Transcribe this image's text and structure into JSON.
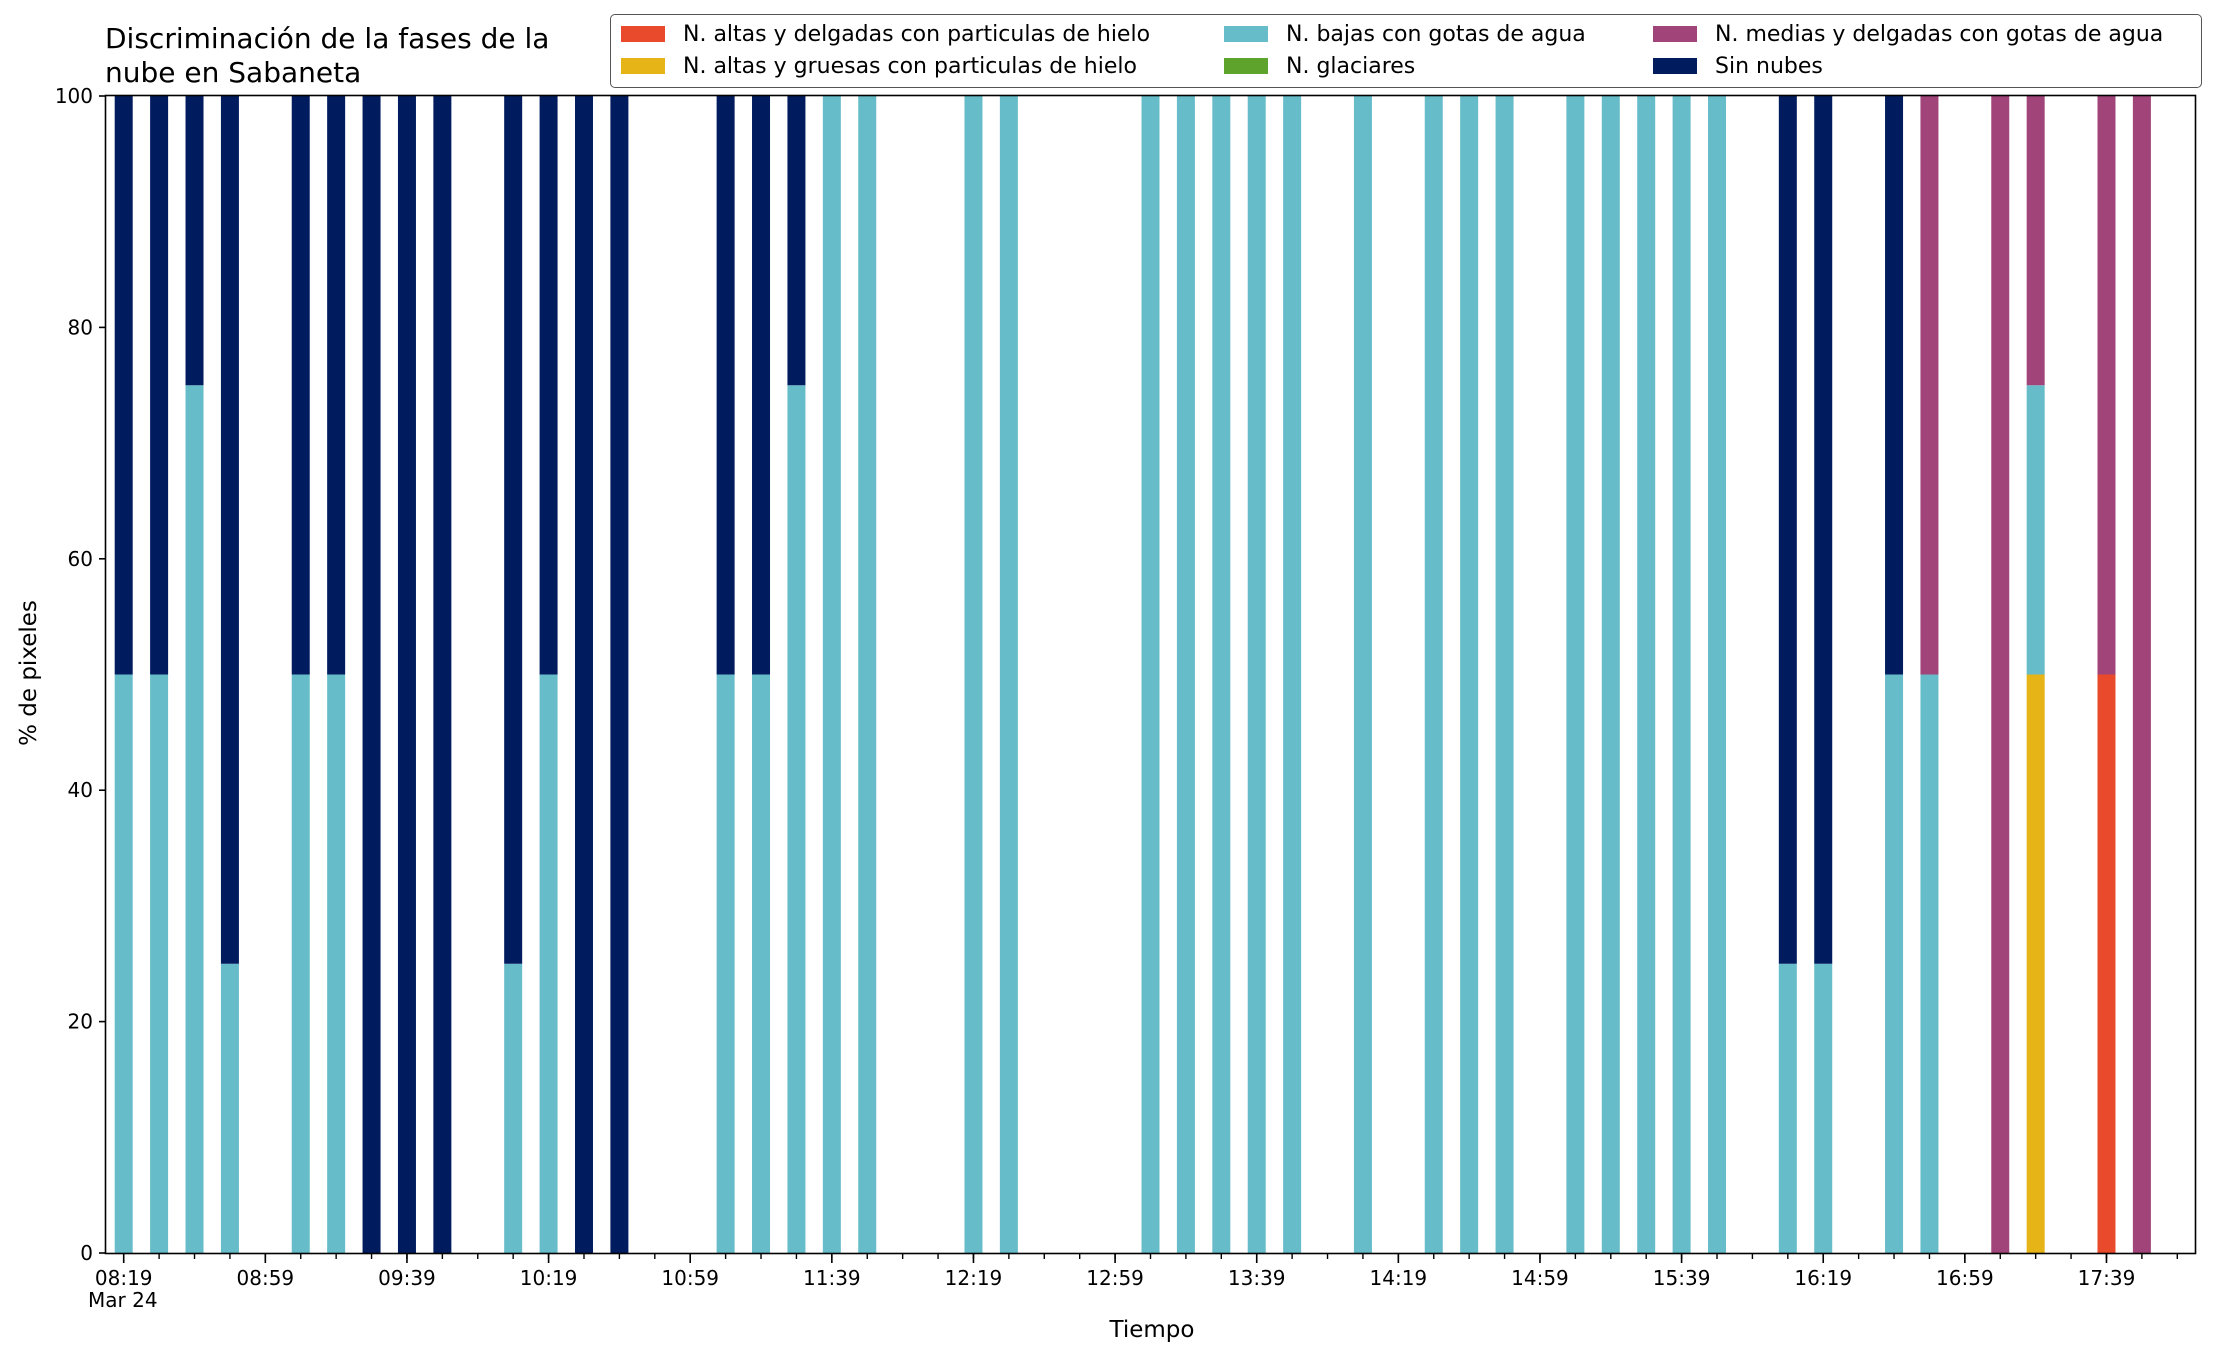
{
  "chart_data": {
    "type": "bar",
    "stacked": true,
    "title": "Discriminación de la fases de la nube en Sabaneta",
    "title_lines": [
      "Discriminación de la fases de la",
      "nube en Sabaneta"
    ],
    "xlabel": "Tiempo",
    "ylabel": "% de pixeles",
    "ylim": [
      0,
      100
    ],
    "yticks": [
      0,
      20,
      40,
      60,
      80,
      100
    ],
    "xlim": [
      "08:14",
      "18:04"
    ],
    "x_tick_labels": [
      "08:19",
      "08:59",
      "09:39",
      "10:19",
      "10:59",
      "11:39",
      "12:19",
      "12:59",
      "13:39",
      "14:19",
      "14:59",
      "15:39",
      "16:19",
      "16:59",
      "17:39"
    ],
    "x_date_label": "Mar 24",
    "legend_position": "top-right",
    "grid": false,
    "series_colors": {
      "altas_delgadas": "#e84a2b",
      "altas_gruesas": "#e6b417",
      "bajas": "#66bcc9",
      "glaciares": "#5ea32b",
      "medias": "#a04479",
      "sin_nubes": "#001c5e"
    },
    "legend": [
      {
        "key": "altas_delgadas",
        "label": "N. altas y delgadas con particulas de hielo"
      },
      {
        "key": "altas_gruesas",
        "label": "N. altas y gruesas con particulas de hielo"
      },
      {
        "key": "bajas",
        "label": "N. bajas con gotas de agua"
      },
      {
        "key": "glaciares",
        "label": "N. glaciares"
      },
      {
        "key": "medias",
        "label": "N. medias y delgadas con gotas de agua"
      },
      {
        "key": "sin_nubes",
        "label": "Sin nubes"
      }
    ],
    "stack_order": [
      "altas_delgadas",
      "altas_gruesas",
      "bajas",
      "glaciares",
      "medias",
      "sin_nubes"
    ],
    "bars": [
      {
        "time": "08:19",
        "bajas": 50,
        "sin_nubes": 50
      },
      {
        "time": "08:29",
        "bajas": 50,
        "sin_nubes": 50
      },
      {
        "time": "08:39",
        "bajas": 75,
        "sin_nubes": 25
      },
      {
        "time": "08:49",
        "bajas": 25,
        "sin_nubes": 75
      },
      {
        "time": "09:09",
        "bajas": 50,
        "sin_nubes": 50
      },
      {
        "time": "09:19",
        "bajas": 50,
        "sin_nubes": 50
      },
      {
        "time": "09:29",
        "sin_nubes": 100
      },
      {
        "time": "09:39",
        "sin_nubes": 100
      },
      {
        "time": "09:49",
        "sin_nubes": 100
      },
      {
        "time": "10:09",
        "bajas": 25,
        "sin_nubes": 75
      },
      {
        "time": "10:19",
        "bajas": 50,
        "sin_nubes": 50
      },
      {
        "time": "10:29",
        "sin_nubes": 100
      },
      {
        "time": "10:39",
        "sin_nubes": 100
      },
      {
        "time": "11:09",
        "bajas": 50,
        "sin_nubes": 50
      },
      {
        "time": "11:19",
        "bajas": 50,
        "sin_nubes": 50
      },
      {
        "time": "11:29",
        "bajas": 75,
        "sin_nubes": 25
      },
      {
        "time": "11:39",
        "bajas": 100
      },
      {
        "time": "11:49",
        "bajas": 100
      },
      {
        "time": "12:19",
        "bajas": 100
      },
      {
        "time": "12:29",
        "bajas": 100
      },
      {
        "time": "13:09",
        "bajas": 100
      },
      {
        "time": "13:19",
        "bajas": 100
      },
      {
        "time": "13:29",
        "bajas": 100
      },
      {
        "time": "13:39",
        "bajas": 100
      },
      {
        "time": "13:49",
        "bajas": 100
      },
      {
        "time": "14:09",
        "bajas": 100
      },
      {
        "time": "14:29",
        "bajas": 100
      },
      {
        "time": "14:39",
        "bajas": 100
      },
      {
        "time": "14:49",
        "bajas": 100
      },
      {
        "time": "15:09",
        "bajas": 100
      },
      {
        "time": "15:19",
        "bajas": 100
      },
      {
        "time": "15:29",
        "bajas": 100
      },
      {
        "time": "15:39",
        "bajas": 100
      },
      {
        "time": "15:49",
        "bajas": 100
      },
      {
        "time": "16:09",
        "bajas": 25,
        "sin_nubes": 75
      },
      {
        "time": "16:19",
        "bajas": 25,
        "sin_nubes": 75
      },
      {
        "time": "16:39",
        "bajas": 50,
        "sin_nubes": 50
      },
      {
        "time": "16:49",
        "bajas": 50,
        "medias": 50
      },
      {
        "time": "17:09",
        "medias": 100
      },
      {
        "time": "17:19",
        "altas_gruesas": 50,
        "bajas": 25,
        "medias": 25
      },
      {
        "time": "17:39",
        "altas_delgadas": 50,
        "medias": 50
      },
      {
        "time": "17:49",
        "medias": 100
      }
    ]
  }
}
